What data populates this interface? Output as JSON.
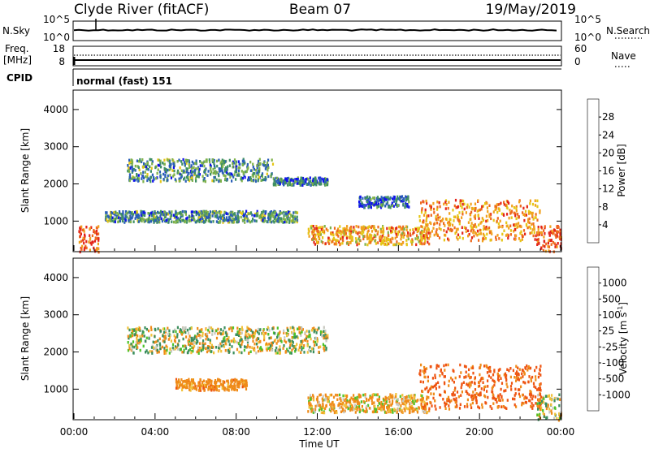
{
  "header": {
    "station": "Clyde River (fitACF)",
    "beam": "Beam 07",
    "date": "19/May/2019"
  },
  "panels": {
    "nsky": {
      "left_label": "N.Sky",
      "left_ticks": [
        "10^5",
        "10^0"
      ],
      "right_ticks": [
        "10^5",
        "10^0"
      ],
      "right_label": "N.Search",
      "right_legend_style": "dotted"
    },
    "freq": {
      "left_label_line1": "Freq.",
      "left_label_line2": "[MHz]",
      "left_ticks": [
        "18",
        "8"
      ],
      "right_ticks": [
        "60",
        "0"
      ],
      "right_label": "Nave",
      "right_legend_style": "dotted"
    },
    "cpid": {
      "label": "CPID",
      "text": "normal (fast) 151"
    }
  },
  "chart_data": [
    {
      "type": "heatmap",
      "parameter": "power",
      "ylabel": "Slant Range [km]",
      "xlabel": "",
      "y_ticks": [
        "1000",
        "2000",
        "3000",
        "4000"
      ],
      "ylim": [
        200,
        4500
      ],
      "colorbar": {
        "label": "Power [dB]",
        "ticks": [
          "4",
          "8",
          "12",
          "16",
          "20",
          "24",
          "28"
        ],
        "colors": [
          "#1010ee",
          "#2a5fb8",
          "#3f8f63",
          "#7fb24a",
          "#e5c617",
          "#f1a11d",
          "#ee6a1d",
          "#e32419"
        ]
      },
      "scatter_regions": [
        {
          "t_start": 2.6,
          "t_end": 9.8,
          "range_low": 2100,
          "range_high": 2700,
          "mean_level": 10
        },
        {
          "t_start": 9.8,
          "t_end": 12.5,
          "range_low": 2000,
          "range_high": 2200,
          "mean_level": 8
        },
        {
          "t_start": 0.2,
          "t_end": 1.2,
          "range_low": 200,
          "range_high": 900,
          "mean_level": 27
        },
        {
          "t_start": 1.5,
          "t_end": 11.0,
          "range_low": 1000,
          "range_high": 1300,
          "mean_level": 10
        },
        {
          "t_start": 11.5,
          "t_end": 17.5,
          "range_low": 400,
          "range_high": 900,
          "mean_level": 22
        },
        {
          "t_start": 14.0,
          "t_end": 16.5,
          "range_low": 1400,
          "range_high": 1700,
          "mean_level": 6
        },
        {
          "t_start": 17.0,
          "t_end": 23.0,
          "range_low": 500,
          "range_high": 1600,
          "mean_level": 24
        },
        {
          "t_start": 22.8,
          "t_end": 24.0,
          "range_low": 200,
          "range_high": 900,
          "mean_level": 28
        }
      ]
    },
    {
      "type": "heatmap",
      "parameter": "velocity",
      "ylabel": "Slant Range [km]",
      "xlabel": "Time UT",
      "x_ticks": [
        "00:00",
        "04:00",
        "08:00",
        "12:00",
        "16:00",
        "20:00",
        "00:00"
      ],
      "y_ticks": [
        "1000",
        "2000",
        "3000",
        "4000"
      ],
      "ylim": [
        200,
        4500
      ],
      "colorbar": {
        "label": "Velocity [m s",
        "label_superscript": "-1",
        "label_close": "]",
        "ticks": [
          "1000",
          "500",
          "100",
          "25",
          "-25",
          "-100",
          "-500",
          "-1000"
        ],
        "colors": [
          "#1d3fd8",
          "#2c6fa6",
          "#3b8e5c",
          "#4cc32a",
          "#c8c8c0",
          "#f1c23a",
          "#ef8b19",
          "#ee5412",
          "#e31414"
        ]
      },
      "scatter_regions": [
        {
          "t_start": 2.6,
          "t_end": 12.5,
          "range_low": 2000,
          "range_high": 2700,
          "mean_velocity": 0
        },
        {
          "t_start": 5.0,
          "t_end": 8.5,
          "range_low": 1000,
          "range_high": 1300,
          "mean_velocity": -300
        },
        {
          "t_start": 11.5,
          "t_end": 17.5,
          "range_low": 400,
          "range_high": 900,
          "mean_velocity": -150
        },
        {
          "t_start": 17.0,
          "t_end": 23.0,
          "range_low": 500,
          "range_high": 1700,
          "mean_velocity": -600
        },
        {
          "t_start": 22.8,
          "t_end": 24.0,
          "range_low": 200,
          "range_high": 900,
          "mean_velocity": 0
        }
      ]
    }
  ]
}
